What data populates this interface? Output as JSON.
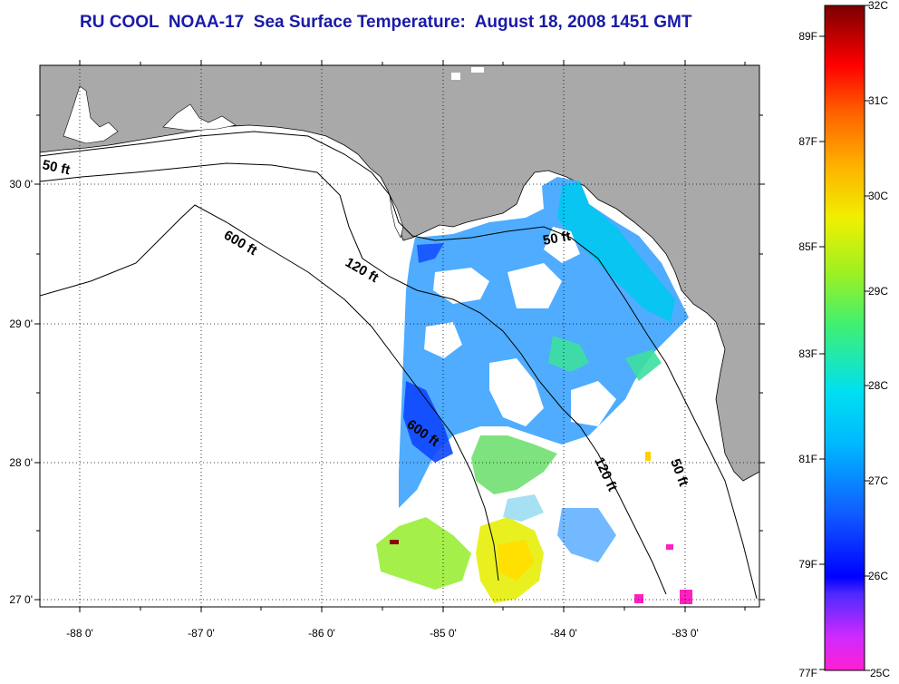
{
  "title": "RU COOL  NOAA-17  Sea Surface Temperature:  August 18, 2008 1451 GMT",
  "map": {
    "lon_ticks": [
      "-88 0'",
      "-87 0'",
      "-86 0'",
      "-85 0'",
      "-84 0'",
      "-83 0'"
    ],
    "lat_ticks": [
      "30 0'",
      "29 0'",
      "28 0'",
      "27 0'"
    ],
    "contours": [
      {
        "label": "50 ft"
      },
      {
        "label": "600 ft"
      },
      {
        "label": "120 ft"
      },
      {
        "label": "50 ft"
      },
      {
        "label": "600 ft"
      },
      {
        "label": "120 ft"
      },
      {
        "label": "50 ft"
      }
    ],
    "land_color": "#a9a9a9",
    "no_data_color": "#ffffff"
  },
  "colorbar": {
    "fahrenheit_labels": [
      "89F",
      "87F",
      "85F",
      "83F",
      "81F",
      "79F",
      "77F"
    ],
    "celsius_labels": [
      "32C",
      "31C",
      "30C",
      "29C",
      "28C",
      "27C",
      "26C",
      "25C"
    ],
    "range_c": [
      25,
      32
    ]
  }
}
